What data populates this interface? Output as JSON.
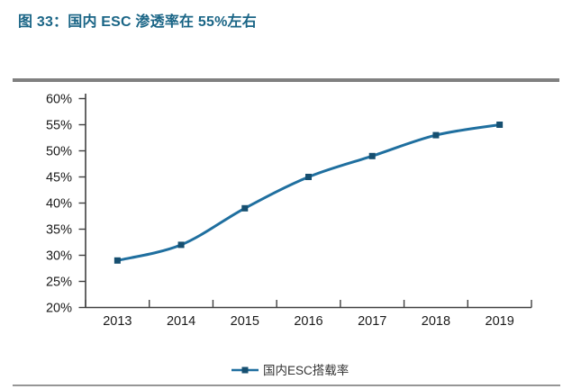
{
  "figure": {
    "title": "图 33：国内 ESC 渗透率在 55%左右"
  },
  "chart_data": {
    "type": "line",
    "title": "图 33：国内 ESC 渗透率在 55%左右",
    "categories": [
      "2013",
      "2014",
      "2015",
      "2016",
      "2017",
      "2018",
      "2019"
    ],
    "series": [
      {
        "name": "国内ESC搭载率",
        "values": [
          29,
          32,
          39,
          45,
          49,
          53,
          55
        ]
      }
    ],
    "ylim": [
      20,
      60
    ],
    "ytick_step": 5,
    "ytick_suffix": "%",
    "grid": false,
    "smooth": true,
    "legend_position": "bottom",
    "colors": {
      "line": "#1F6F9F",
      "marker": "#164F70",
      "axis": "#404040",
      "tick_label": "#1A1A1A",
      "title": "#1A6586",
      "rule_top": "#808080",
      "rule_bottom": "#969696",
      "legend_text": "#333333"
    }
  }
}
